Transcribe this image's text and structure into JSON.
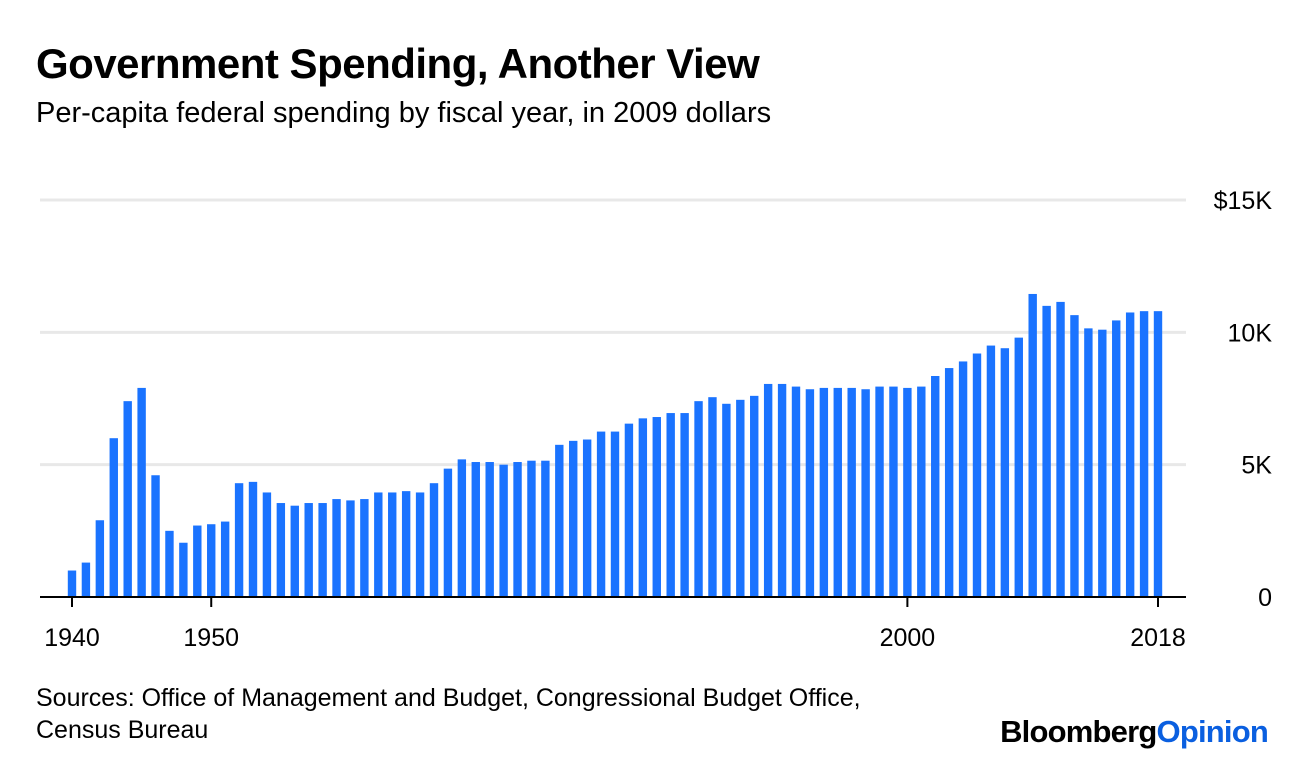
{
  "header": {
    "title": "Government Spending, Another View",
    "subtitle": "Per-capita federal spending by fiscal year, in 2009 dollars"
  },
  "footer": {
    "sources_line1": "Sources: Office of Management and Budget, Congressional Budget Office,",
    "sources_line2": "Census Bureau",
    "brand_part1": "Bloomberg",
    "brand_part2": "Opinion"
  },
  "colors": {
    "bar": "#1a73ff",
    "grid": "#e8e8e8",
    "axis": "#000000",
    "brand_accent": "#0a5fe0"
  },
  "chart_data": {
    "type": "bar",
    "title": "Government Spending, Another View",
    "subtitle": "Per-capita federal spending by fiscal year, in 2009 dollars",
    "xlabel": "",
    "ylabel": "",
    "grid": true,
    "y_axis_side": "right",
    "ylim": [
      0,
      15000
    ],
    "y_ticks": [
      {
        "value": 0,
        "label": "0"
      },
      {
        "value": 5000,
        "label": "5K"
      },
      {
        "value": 10000,
        "label": "10K"
      },
      {
        "value": 15000,
        "label": "$15K"
      }
    ],
    "x_ticks": [
      {
        "value": 1940,
        "label": "1940"
      },
      {
        "value": 1950,
        "label": "1950"
      },
      {
        "value": 2000,
        "label": "2000"
      },
      {
        "value": 2018,
        "label": "2018"
      }
    ],
    "x_range": [
      1940,
      2018
    ],
    "categories": [
      1940,
      1941,
      1942,
      1943,
      1944,
      1945,
      1946,
      1947,
      1948,
      1949,
      1950,
      1951,
      1952,
      1953,
      1954,
      1955,
      1956,
      1957,
      1958,
      1959,
      1960,
      1961,
      1962,
      1963,
      1964,
      1965,
      1966,
      1967,
      1968,
      1969,
      1970,
      1971,
      1972,
      1973,
      1974,
      1975,
      1976,
      1977,
      1978,
      1979,
      1980,
      1981,
      1982,
      1983,
      1984,
      1985,
      1986,
      1987,
      1988,
      1989,
      1990,
      1991,
      1992,
      1993,
      1994,
      1995,
      1996,
      1997,
      1998,
      1999,
      2000,
      2001,
      2002,
      2003,
      2004,
      2005,
      2006,
      2007,
      2008,
      2009,
      2010,
      2011,
      2012,
      2013,
      2014,
      2015,
      2016,
      2017,
      2018
    ],
    "values": [
      1000,
      1300,
      2900,
      6000,
      7400,
      7900,
      4600,
      2500,
      2050,
      2700,
      2750,
      2850,
      4300,
      4350,
      3950,
      3550,
      3450,
      3550,
      3550,
      3700,
      3650,
      3700,
      3950,
      3950,
      4000,
      3950,
      4300,
      4850,
      5200,
      5100,
      5100,
      5000,
      5100,
      5150,
      5150,
      5750,
      5900,
      5950,
      6250,
      6250,
      6550,
      6750,
      6800,
      6950,
      6950,
      7400,
      7550,
      7300,
      7450,
      7600,
      8050,
      8050,
      7950,
      7850,
      7900,
      7900,
      7900,
      7850,
      7950,
      7950,
      7900,
      7950,
      8350,
      8650,
      8900,
      9200,
      9500,
      9400,
      9800,
      11450,
      11000,
      11150,
      10650,
      10150,
      10100,
      10450,
      10750,
      10800,
      10800
    ],
    "series": [
      {
        "name": "Per-capita federal spending (2009 dollars)"
      }
    ]
  }
}
